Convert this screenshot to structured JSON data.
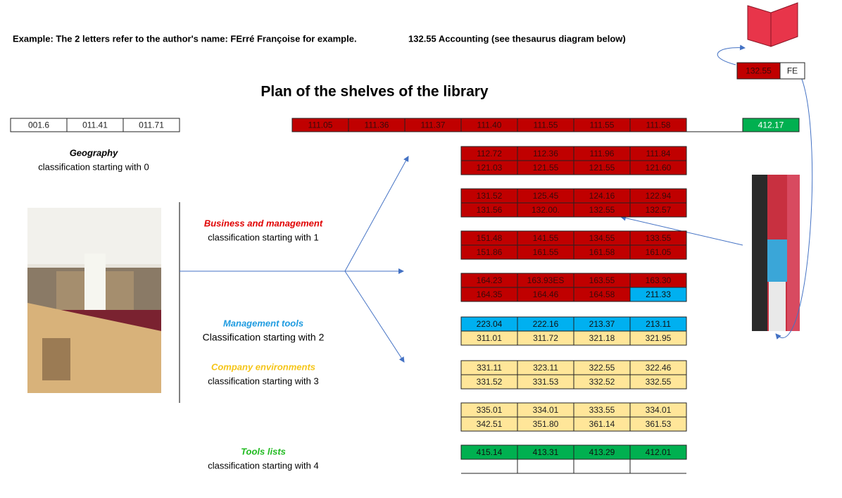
{
  "header": {
    "example_note": "Example: The 2 letters refer to the author's name: FErré Françoise for example.",
    "accounting_note": "132.55 Accounting (see thesaurus diagram below)",
    "title": "Plan of the shelves of the library"
  },
  "label_card": {
    "number": "132.55",
    "letters": "FE"
  },
  "top_left_row": [
    "001.6",
    "011.41",
    "011.71"
  ],
  "top_row": {
    "values": [
      "111.05",
      "111.36",
      "111.37",
      "111.40",
      "111.55",
      "111.55",
      "111.58"
    ],
    "color": "#c00000"
  },
  "end_cell": {
    "value": "412.17",
    "color": "#00b050"
  },
  "categories": [
    {
      "name": "Geography",
      "description": "classification starting  with 0",
      "color": "#000000"
    },
    {
      "name": "Business and management",
      "description": "classification starting with 1",
      "color": "#e00000"
    },
    {
      "name": "Management tools",
      "description": "Classification starting with 2",
      "color": "#1e9be0"
    },
    {
      "name": "Company environments",
      "description": "classification starting with 3",
      "color": "#f5c518"
    },
    {
      "name": "Tools lists",
      "description": "classification starting with 4",
      "color": "#22bb22"
    }
  ],
  "shelves": [
    [
      {
        "values": [
          "112.72",
          "112.36",
          "111.96",
          "111.84"
        ],
        "colors": [
          "#c00000",
          "#c00000",
          "#c00000",
          "#c00000"
        ]
      },
      {
        "values": [
          "121.03",
          "121.55",
          "121.55",
          "121.60"
        ],
        "colors": [
          "#c00000",
          "#c00000",
          "#c00000",
          "#c00000"
        ]
      }
    ],
    [
      {
        "values": [
          "131.52",
          "125.45",
          "124.16",
          "122.94"
        ],
        "colors": [
          "#c00000",
          "#c00000",
          "#c00000",
          "#c00000"
        ]
      },
      {
        "values": [
          "131.56",
          "132.00.",
          "132.55",
          "132.57"
        ],
        "colors": [
          "#c00000",
          "#c00000",
          "#c00000",
          "#c00000"
        ]
      }
    ],
    [
      {
        "values": [
          "151.48",
          "141.55",
          "134.55",
          "133.55"
        ],
        "colors": [
          "#c00000",
          "#c00000",
          "#c00000",
          "#c00000"
        ]
      },
      {
        "values": [
          "151.86",
          "161.55",
          "161.58",
          "161.05"
        ],
        "colors": [
          "#c00000",
          "#c00000",
          "#c00000",
          "#c00000"
        ]
      }
    ],
    [
      {
        "values": [
          "164.23",
          "163.93ES",
          "163.55",
          "163.30"
        ],
        "colors": [
          "#c00000",
          "#c00000",
          "#c00000",
          "#c00000"
        ]
      },
      {
        "values": [
          "164.35",
          "164.46",
          "164.58",
          "211.33"
        ],
        "colors": [
          "#c00000",
          "#c00000",
          "#c00000",
          "#00b0f0"
        ]
      }
    ],
    [
      {
        "values": [
          "223.04",
          "222.16",
          "213.37",
          "213.11"
        ],
        "colors": [
          "#00b0f0",
          "#00b0f0",
          "#00b0f0",
          "#00b0f0"
        ]
      },
      {
        "values": [
          "311.01",
          "311.72",
          "321.18",
          "321.95"
        ],
        "colors": [
          "#ffe699",
          "#ffe699",
          "#ffe699",
          "#ffe699"
        ]
      }
    ],
    [
      {
        "values": [
          "331.11",
          "323.11",
          "322.55",
          "322.46"
        ],
        "colors": [
          "#ffe699",
          "#ffe699",
          "#ffe699",
          "#ffe699"
        ]
      },
      {
        "values": [
          "331.52",
          "331.53",
          "332.52",
          "332.55"
        ],
        "colors": [
          "#ffe699",
          "#ffe699",
          "#ffe699",
          "#ffe699"
        ]
      }
    ],
    [
      {
        "values": [
          "335.01",
          "334.01",
          "333.55",
          "334.01"
        ],
        "colors": [
          "#ffe699",
          "#ffe699",
          "#ffe699",
          "#ffe699"
        ]
      },
      {
        "values": [
          "342.51",
          "351.80",
          "361.14",
          "361.53"
        ],
        "colors": [
          "#ffe699",
          "#ffe699",
          "#ffe699",
          "#ffe699"
        ]
      }
    ],
    [
      {
        "values": [
          "415.14",
          "413.31",
          "413.29",
          "412.01"
        ],
        "colors": [
          "#00b050",
          "#00b050",
          "#00b050",
          "#00b050"
        ]
      }
    ]
  ]
}
